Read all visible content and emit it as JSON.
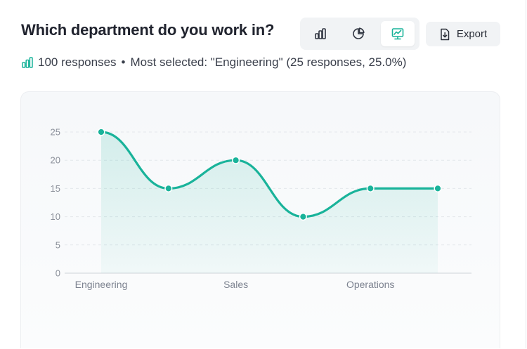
{
  "question": {
    "title": "Which department do you work in?"
  },
  "view_toggle": {
    "options": [
      {
        "icon": "bar-chart-icon",
        "active": false
      },
      {
        "icon": "pie-chart-icon",
        "active": false
      },
      {
        "icon": "line-chart-icon",
        "active": true
      }
    ],
    "accent": "#19b39a"
  },
  "export": {
    "label": "Export",
    "icon": "download-file-icon"
  },
  "summary": {
    "icon": "bar-chart-icon",
    "responses": "100 responses",
    "separator": "•",
    "most_selected": "Most selected: \"Engineering\" (25 responses, 25.0%)"
  },
  "chart_data": {
    "type": "area",
    "categories": [
      "Engineering",
      "",
      "Sales",
      "",
      "Operations",
      ""
    ],
    "series": [
      {
        "values": [
          25,
          15,
          20,
          10,
          15,
          15
        ],
        "color": "#19b39a"
      }
    ],
    "y_ticks": [
      "0",
      "5",
      "10",
      "15",
      "20",
      "25"
    ],
    "ylim": [
      0,
      25
    ],
    "grid": "horizontal dashed",
    "xlabel": "",
    "ylabel": "",
    "title": ""
  }
}
